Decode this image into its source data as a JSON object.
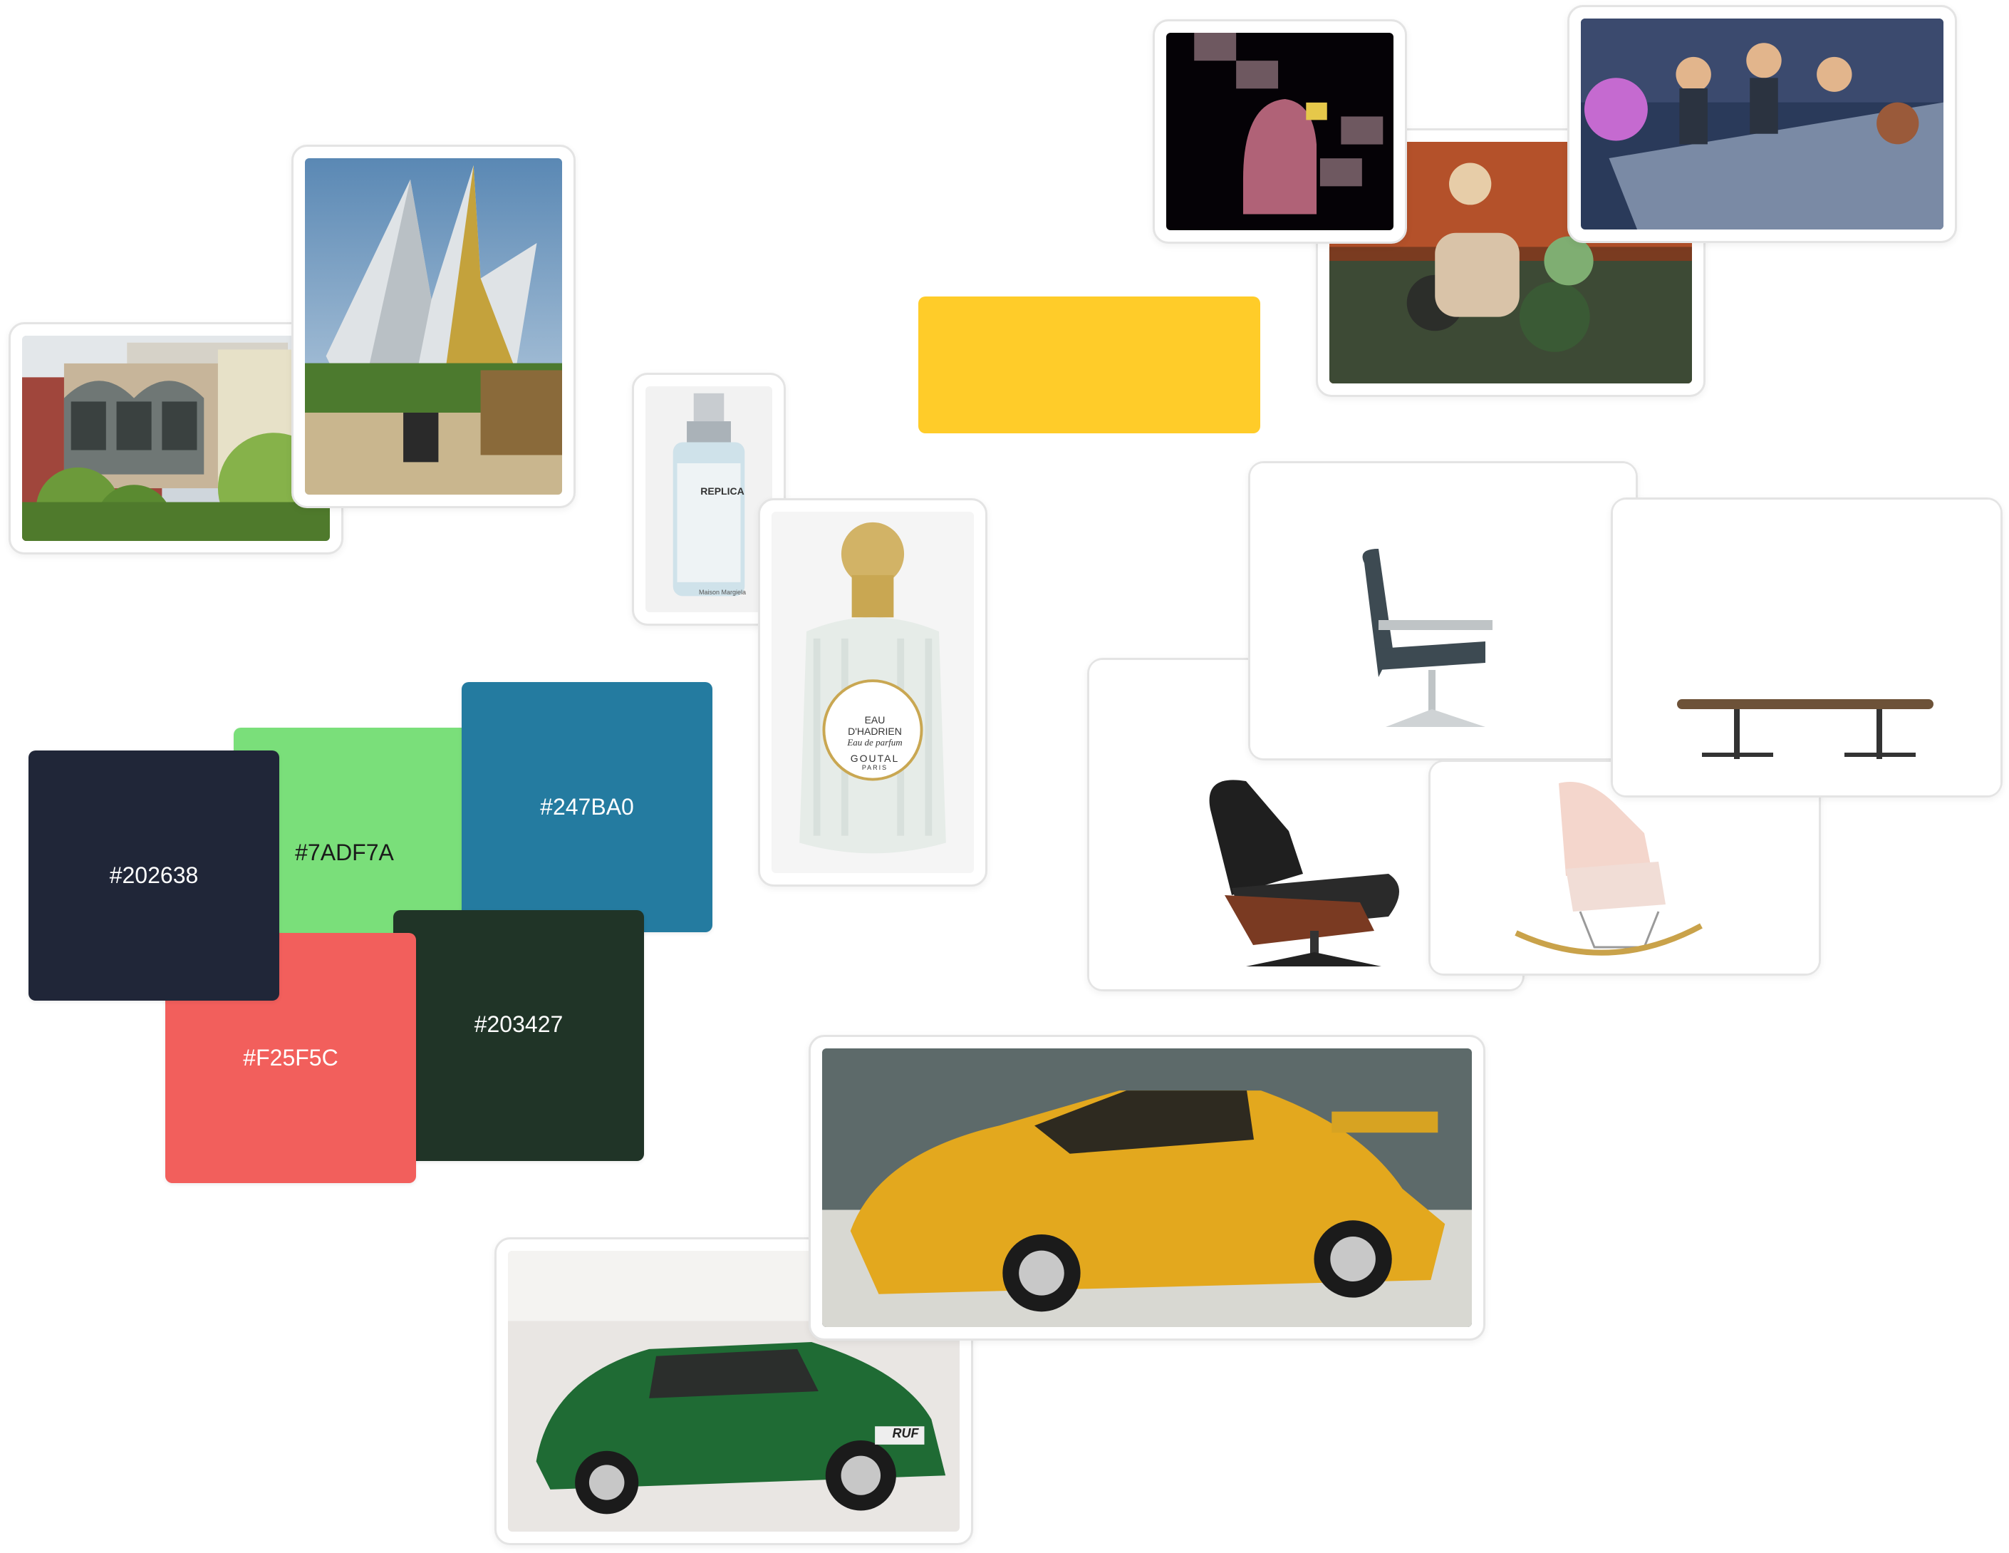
{
  "board": {
    "background": "#ffffff"
  },
  "swatches": [
    {
      "hex_label": "#7ADF7A",
      "color": "#7ADF7A",
      "text_color": "#1a1a1a"
    },
    {
      "hex_label": "#247BA0",
      "color": "#247BA0",
      "text_color": "#ffffff"
    },
    {
      "hex_label": "#203427",
      "color": "#203427",
      "text_color": "#ffffff"
    },
    {
      "hex_label": "#F25F5C",
      "color": "#F25F5C",
      "text_color": "#ffffff"
    },
    {
      "hex_label": "#202638",
      "color": "#202638",
      "text_color": "#ffffff"
    }
  ],
  "sticky_note": {
    "color": "#FFCC29"
  },
  "perfume_replica": {
    "brand": "REPLICA",
    "notes": "Maison Margiela"
  },
  "perfume_goutal": {
    "line1": "EAU",
    "line2": "D'HADRIEN",
    "line3": "Eau de parfum",
    "brand": "GOUTAL",
    "city": "PARIS"
  },
  "car_plate": {
    "text": "RUF"
  },
  "images": [
    "building-photo",
    "pavilion-photo",
    "cartoon-dark-scene",
    "cartoon-motorcycle-scene",
    "cartoon-meeting-scene",
    "replica-perfume",
    "goutal-perfume",
    "office-chair",
    "oval-table",
    "lounge-chair",
    "rocking-chair",
    "yellow-porsche",
    "green-porsche"
  ]
}
